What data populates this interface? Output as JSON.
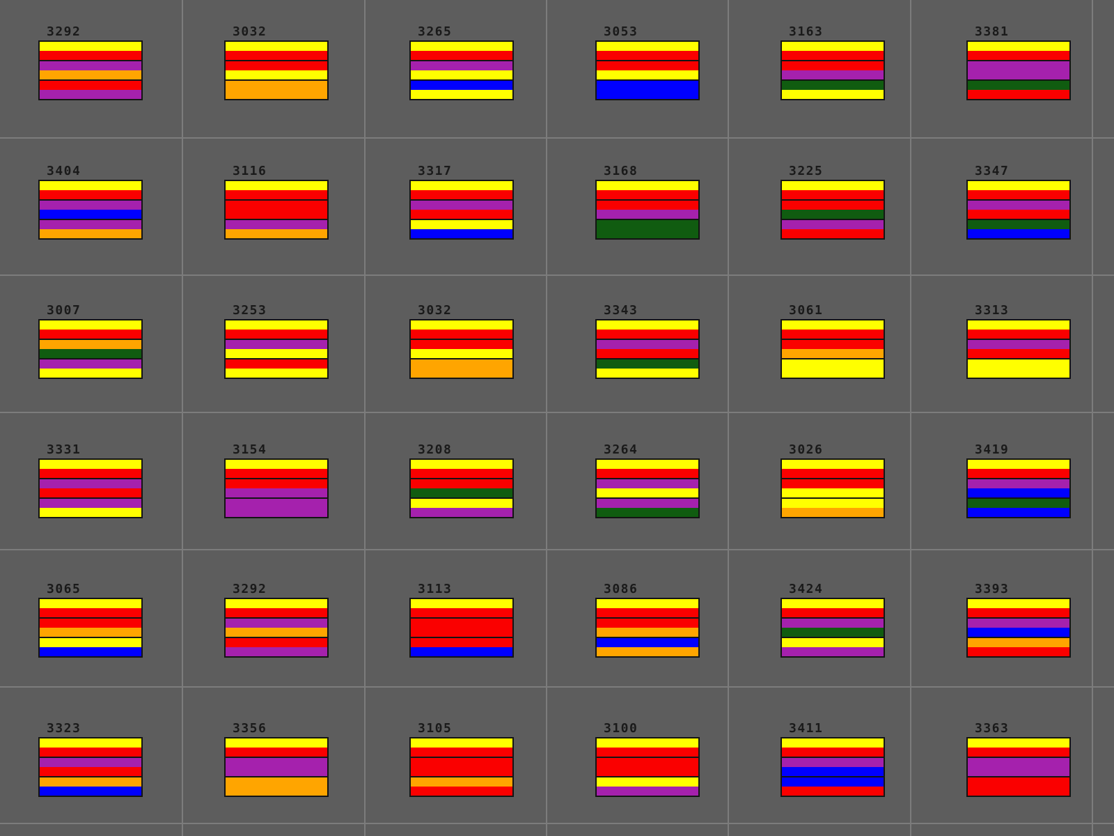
{
  "app": {
    "background_color": "#5D5D5D",
    "grid_line_color": "#7C7C7C",
    "flag_border_color": "#141414",
    "label_color": "#1A1A1A"
  },
  "palette": {
    "yellow": "#FFFF00",
    "red": "#FA0000",
    "purple": "#A521AD",
    "orange": "#FFA500",
    "green": "#105C10",
    "blue": "#0000FF"
  },
  "layout_hints": {
    "cols": 6,
    "rows": 6
  },
  "flags": [
    {
      "id": "3292",
      "bands": [
        "yellow",
        "red",
        "purple",
        "orange",
        "red",
        "purple"
      ]
    },
    {
      "id": "3032",
      "bands": [
        "yellow",
        "red",
        "red",
        "yellow",
        "orange",
        "orange"
      ]
    },
    {
      "id": "3265",
      "bands": [
        "yellow",
        "red",
        "purple",
        "yellow",
        "blue",
        "yellow"
      ]
    },
    {
      "id": "3053",
      "bands": [
        "yellow",
        "red",
        "red",
        "yellow",
        "blue",
        "blue"
      ]
    },
    {
      "id": "3163",
      "bands": [
        "yellow",
        "red",
        "red",
        "purple",
        "green",
        "yellow"
      ]
    },
    {
      "id": "3381",
      "bands": [
        "yellow",
        "red",
        "purple",
        "purple",
        "green",
        "red"
      ]
    },
    {
      "id": "3404",
      "bands": [
        "yellow",
        "red",
        "purple",
        "blue",
        "purple",
        "orange"
      ]
    },
    {
      "id": "3116",
      "bands": [
        "yellow",
        "red",
        "red",
        "red",
        "purple",
        "orange"
      ]
    },
    {
      "id": "3317",
      "bands": [
        "yellow",
        "red",
        "purple",
        "red",
        "yellow",
        "blue"
      ]
    },
    {
      "id": "3168",
      "bands": [
        "yellow",
        "red",
        "red",
        "purple",
        "green",
        "green"
      ]
    },
    {
      "id": "3225",
      "bands": [
        "yellow",
        "red",
        "red",
        "green",
        "purple",
        "red"
      ]
    },
    {
      "id": "3347",
      "bands": [
        "yellow",
        "red",
        "purple",
        "red",
        "green",
        "blue"
      ]
    },
    {
      "id": "3007",
      "bands": [
        "yellow",
        "red",
        "orange",
        "green",
        "purple",
        "yellow"
      ]
    },
    {
      "id": "3253",
      "bands": [
        "yellow",
        "red",
        "purple",
        "yellow",
        "red",
        "yellow"
      ]
    },
    {
      "id": "3032",
      "bands": [
        "yellow",
        "red",
        "red",
        "yellow",
        "orange",
        "orange"
      ]
    },
    {
      "id": "3343",
      "bands": [
        "yellow",
        "red",
        "purple",
        "red",
        "green",
        "yellow"
      ]
    },
    {
      "id": "3061",
      "bands": [
        "yellow",
        "red",
        "red",
        "orange",
        "yellow",
        "yellow"
      ]
    },
    {
      "id": "3313",
      "bands": [
        "yellow",
        "red",
        "purple",
        "red",
        "yellow",
        "yellow"
      ]
    },
    {
      "id": "3331",
      "bands": [
        "yellow",
        "red",
        "purple",
        "red",
        "purple",
        "yellow"
      ]
    },
    {
      "id": "3154",
      "bands": [
        "yellow",
        "red",
        "red",
        "purple",
        "purple",
        "purple"
      ]
    },
    {
      "id": "3208",
      "bands": [
        "yellow",
        "red",
        "red",
        "green",
        "yellow",
        "purple"
      ]
    },
    {
      "id": "3264",
      "bands": [
        "yellow",
        "red",
        "purple",
        "yellow",
        "purple",
        "green"
      ]
    },
    {
      "id": "3026",
      "bands": [
        "yellow",
        "red",
        "red",
        "yellow",
        "yellow",
        "orange"
      ]
    },
    {
      "id": "3419",
      "bands": [
        "yellow",
        "red",
        "purple",
        "blue",
        "green",
        "blue"
      ]
    },
    {
      "id": "3065",
      "bands": [
        "yellow",
        "red",
        "red",
        "orange",
        "yellow",
        "blue"
      ]
    },
    {
      "id": "3292",
      "bands": [
        "yellow",
        "red",
        "purple",
        "orange",
        "red",
        "purple"
      ]
    },
    {
      "id": "3113",
      "bands": [
        "yellow",
        "red",
        "red",
        "red",
        "red",
        "blue"
      ]
    },
    {
      "id": "3086",
      "bands": [
        "yellow",
        "red",
        "red",
        "orange",
        "blue",
        "orange"
      ]
    },
    {
      "id": "3424",
      "bands": [
        "yellow",
        "red",
        "purple",
        "green",
        "yellow",
        "purple"
      ]
    },
    {
      "id": "3393",
      "bands": [
        "yellow",
        "red",
        "purple",
        "blue",
        "orange",
        "red"
      ]
    },
    {
      "id": "3323",
      "bands": [
        "yellow",
        "red",
        "purple",
        "red",
        "orange",
        "blue"
      ]
    },
    {
      "id": "3356",
      "bands": [
        "yellow",
        "red",
        "purple",
        "purple",
        "orange",
        "orange"
      ]
    },
    {
      "id": "3105",
      "bands": [
        "yellow",
        "red",
        "red",
        "red",
        "orange",
        "red"
      ]
    },
    {
      "id": "3100",
      "bands": [
        "yellow",
        "red",
        "red",
        "red",
        "yellow",
        "purple"
      ]
    },
    {
      "id": "3411",
      "bands": [
        "yellow",
        "red",
        "purple",
        "blue",
        "blue",
        "red"
      ]
    },
    {
      "id": "3363",
      "bands": [
        "yellow",
        "red",
        "purple",
        "purple",
        "red",
        "red"
      ]
    }
  ]
}
